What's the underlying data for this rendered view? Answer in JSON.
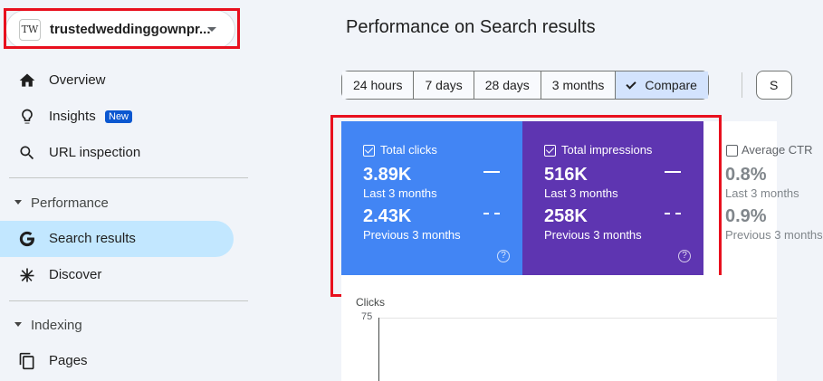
{
  "property": {
    "logo_text": "TW",
    "name": "trustedweddinggownpr..."
  },
  "sidebar": {
    "items": [
      {
        "label": "Overview",
        "icon": "home-icon"
      },
      {
        "label": "Insights",
        "icon": "lightbulb-icon",
        "badge": "New"
      },
      {
        "label": "URL inspection",
        "icon": "search-icon"
      }
    ],
    "performance_header": "Performance",
    "performance_items": [
      {
        "label": "Search results",
        "icon": "google-g-icon",
        "active": true
      },
      {
        "label": "Discover",
        "icon": "asterisk-icon"
      }
    ],
    "indexing_header": "Indexing",
    "indexing_items": [
      {
        "label": "Pages",
        "icon": "pages-icon"
      }
    ]
  },
  "main": {
    "title": "Performance on Search results",
    "date_chips": [
      "24 hours",
      "7 days",
      "28 days",
      "3 months",
      "Compare"
    ],
    "selected_chip": "Compare",
    "extra_chip": "S"
  },
  "cards": {
    "clicks": {
      "title": "Total clicks",
      "current_value": "3.89K",
      "current_period": "Last 3 months",
      "previous_value": "2.43K",
      "previous_period": "Previous 3 months",
      "color": "#4285f4"
    },
    "impressions": {
      "title": "Total impressions",
      "current_value": "516K",
      "current_period": "Last 3 months",
      "previous_value": "258K",
      "previous_period": "Previous 3 months",
      "color": "#5e35b1"
    },
    "ctr": {
      "title": "Average CTR",
      "current_value": "0.8%",
      "current_period": "Last 3 months",
      "previous_value": "0.9%",
      "previous_period": "Previous 3 months"
    }
  },
  "chart": {
    "ylabel": "Clicks",
    "top_tick": "75"
  },
  "colors": {
    "highlight": "#e8101e",
    "active_nav": "#c2e7ff",
    "selected_chip": "#d3e3fd"
  }
}
